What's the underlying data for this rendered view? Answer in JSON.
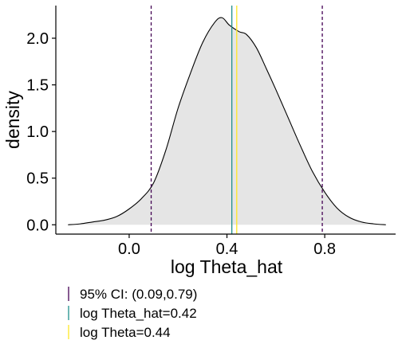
{
  "chart_data": {
    "type": "area",
    "xlabel": "log Theta_hat",
    "ylabel": "density",
    "xlim": [
      -0.3,
      1.09
    ],
    "ylim": [
      -0.1,
      2.35
    ],
    "x_ticks": [
      "0.0",
      "0.4",
      "0.8"
    ],
    "x_tick_values": [
      0.0,
      0.4,
      0.8
    ],
    "y_ticks": [
      "0.0",
      "0.5",
      "1.0",
      "1.5",
      "2.0"
    ],
    "y_tick_values": [
      0.0,
      0.5,
      1.0,
      1.5,
      2.0
    ],
    "grid": false,
    "density_curve": {
      "fill": "#e5e5e5",
      "stroke": "#000000",
      "x": [
        -0.25,
        -0.2,
        -0.15,
        -0.1,
        -0.05,
        0.0,
        0.05,
        0.1,
        0.15,
        0.2,
        0.25,
        0.3,
        0.35,
        0.38,
        0.41,
        0.45,
        0.48,
        0.52,
        0.56,
        0.6,
        0.65,
        0.7,
        0.75,
        0.8,
        0.85,
        0.9,
        0.95,
        1.0,
        1.05
      ],
      "y": [
        0.0,
        0.01,
        0.03,
        0.05,
        0.09,
        0.17,
        0.28,
        0.45,
        0.8,
        1.25,
        1.62,
        1.95,
        2.17,
        2.22,
        2.14,
        2.07,
        2.04,
        1.9,
        1.68,
        1.45,
        1.15,
        0.85,
        0.57,
        0.35,
        0.18,
        0.08,
        0.03,
        0.01,
        0.0
      ]
    },
    "vlines": [
      {
        "x": 0.09,
        "label": "95% CI: (0.09,0.79)",
        "color": "#440154",
        "style": "dashed"
      },
      {
        "x": 0.79,
        "color": "#440154",
        "style": "dashed"
      },
      {
        "x": 0.42,
        "label": "log Theta_hat=0.42",
        "color": "#21908c",
        "style": "solid"
      },
      {
        "x": 0.44,
        "label": "log Theta=0.44",
        "color": "#fde725",
        "style": "solid"
      }
    ],
    "legend": {
      "position": "bottom",
      "entries": [
        {
          "label": "95% CI: (0.09,0.79)",
          "color": "#440154"
        },
        {
          "label": "log Theta_hat=0.42",
          "color": "#21908c"
        },
        {
          "label": "log Theta=0.44",
          "color": "#fde725"
        }
      ]
    }
  }
}
